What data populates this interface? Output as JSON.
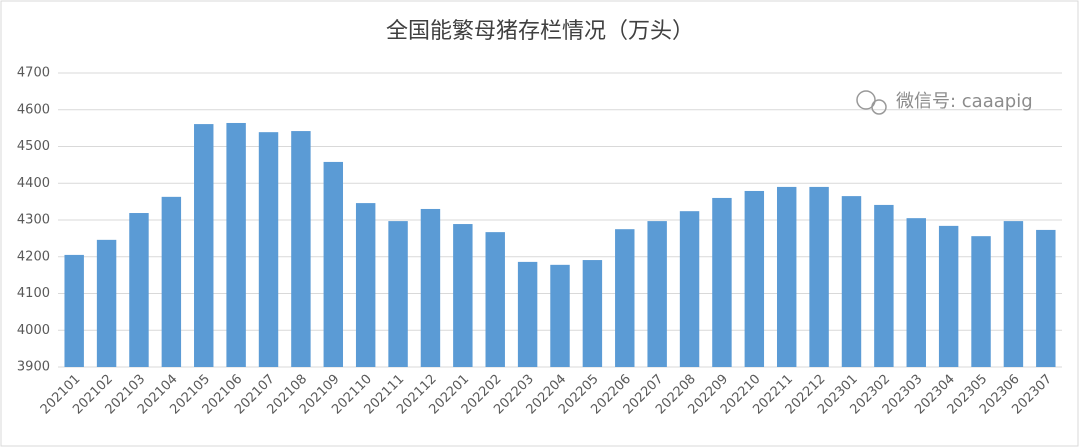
{
  "chart_data": {
    "type": "bar",
    "title": "全国能繁母猪存栏情况（万头）",
    "watermark": "微信号: caaapig",
    "categories": [
      "202101",
      "202102",
      "202103",
      "202104",
      "202105",
      "202106",
      "202107",
      "202108",
      "202109",
      "202110",
      "202111",
      "202112",
      "202201",
      "202202",
      "202203",
      "202204",
      "202205",
      "202206",
      "202207",
      "202208",
      "202209",
      "202210",
      "202211",
      "202212",
      "202301",
      "202302",
      "202303",
      "202304",
      "202305",
      "202306",
      "202307"
    ],
    "values": [
      4205,
      4246,
      4319,
      4363,
      4561,
      4564,
      4539,
      4542,
      4458,
      4346,
      4297,
      4330,
      4289,
      4267,
      4186,
      4178,
      4191,
      4275,
      4297,
      4324,
      4360,
      4379,
      4390,
      4390,
      4365,
      4341,
      4305,
      4284,
      4256,
      4297,
      4273
    ],
    "color": "#5b9bd5",
    "ylim": [
      3900,
      4700
    ],
    "yticks": [
      3900,
      4000,
      4100,
      4200,
      4300,
      4400,
      4500,
      4600,
      4700
    ],
    "grid": true
  }
}
